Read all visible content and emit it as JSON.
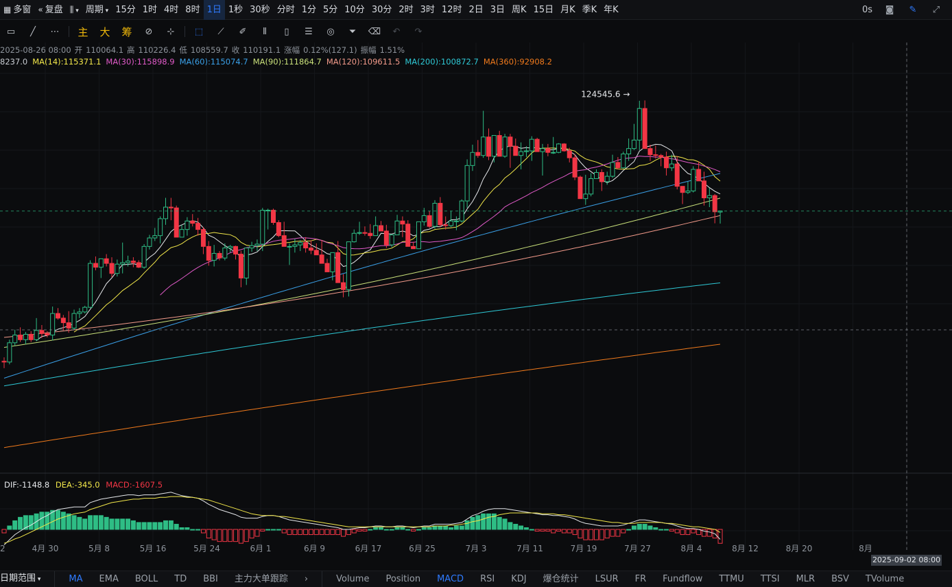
{
  "topbar": {
    "multiwindow": "多窗",
    "replay": "复盘",
    "period": "周期",
    "intervals": [
      "15分",
      "1时",
      "4时",
      "8时",
      "1日",
      "1秒",
      "30秒",
      "分时",
      "1分",
      "5分",
      "10分",
      "30分",
      "2时",
      "3时",
      "12时",
      "2日",
      "3日",
      "周K",
      "15日",
      "月K",
      "季K",
      "年K"
    ],
    "active_interval": "1日",
    "delay": "0s"
  },
  "toolbar": {
    "main": "主",
    "big": "大",
    "chips": "筹"
  },
  "ohlc": {
    "date": "2025-08-26 08:00",
    "open_label": "开",
    "open": "110064.1",
    "high_label": "高",
    "high": "110226.4",
    "low_label": "低",
    "low": "108559.7",
    "close_label": "收",
    "close": "110191.1",
    "change_label": "涨幅",
    "change": "0.12%(127.1)",
    "amp_label": "振幅",
    "amp": "1.51%"
  },
  "ma_legend": [
    {
      "text": "8237.0",
      "color": "#c7cbd1"
    },
    {
      "text": "MA(14):115371.1",
      "color": "#f2e74a"
    },
    {
      "text": "MA(30):115898.9",
      "color": "#e05ac8"
    },
    {
      "text": "MA(60):115074.7",
      "color": "#3aa0e8"
    },
    {
      "text": "MA(90):111864.7",
      "color": "#c9e07a"
    },
    {
      "text": "MA(120):109611.5",
      "color": "#f29a8a"
    },
    {
      "text": "MA(200):100872.7",
      "color": "#2ec9d6"
    },
    {
      "text": "MA(360):92908.2",
      "color": "#f07a1c"
    }
  ],
  "high_marker": "124545.6",
  "macd": {
    "dif": "DIF:-1148.8",
    "dea": "DEA:-345.0",
    "macd": "MACD:-1607.5"
  },
  "x_labels": [
    "2",
    "4月 30",
    "5月 8",
    "5月 16",
    "5月 24",
    "6月 1",
    "6月 9",
    "6月 17",
    "6月 25",
    "7月 3",
    "7月 11",
    "7月 19",
    "7月 27",
    "8月 4",
    "8月 12",
    "8月 20",
    "8月"
  ],
  "crosshair_date": "2025-09-02 08:00",
  "bottombar": {
    "range": "日期范围",
    "main_indicators": [
      "MA",
      "EMA",
      "BOLL",
      "TD",
      "BBI",
      "主力大单跟踪"
    ],
    "sub_indicators": [
      "Volume",
      "Position",
      "MACD",
      "RSI",
      "KDJ",
      "爆仓统计",
      "LSUR",
      "FR",
      "Fundflow",
      "TTMU",
      "TTSI",
      "MLR",
      "BSV",
      "TVolume"
    ],
    "active_main": "MA",
    "active_sub": "MACD"
  },
  "colors": {
    "up": "#2ebd85",
    "down": "#f23645",
    "accent": "#2f7bff"
  },
  "chart_data": {
    "type": "candlestick",
    "ylim": [
      76000,
      128500
    ],
    "candles": [
      [
        90700,
        91200,
        89800,
        90600
      ],
      [
        90600,
        93500,
        90300,
        93100
      ],
      [
        93100,
        94800,
        92700,
        94100
      ],
      [
        94100,
        95100,
        93200,
        93500
      ],
      [
        93500,
        94500,
        92900,
        94200
      ],
      [
        94200,
        94600,
        93200,
        93500
      ],
      [
        93500,
        96300,
        93300,
        94700
      ],
      [
        94700,
        95400,
        93700,
        94300
      ],
      [
        94300,
        94600,
        93800,
        94100
      ],
      [
        94100,
        97800,
        93400,
        96900
      ],
      [
        96900,
        97600,
        96100,
        96300
      ],
      [
        96300,
        96700,
        94700,
        95700
      ],
      [
        95700,
        97200,
        94400,
        95000
      ],
      [
        95000,
        97400,
        94800,
        96900
      ],
      [
        96900,
        97600,
        96300,
        97100
      ],
      [
        97100,
        97900,
        96900,
        97700
      ],
      [
        97700,
        103800,
        97600,
        103400
      ],
      [
        103400,
        104300,
        102500,
        102900
      ],
      [
        102900,
        104000,
        101500,
        104000
      ],
      [
        104000,
        104600,
        103000,
        103400
      ],
      [
        103400,
        104200,
        101600,
        102100
      ],
      [
        102100,
        103900,
        101700,
        103300
      ],
      [
        103300,
        106100,
        102100,
        103500
      ],
      [
        103500,
        104400,
        103000,
        103700
      ],
      [
        103700,
        104200,
        102900,
        103500
      ],
      [
        103500,
        103800,
        102800,
        102900
      ],
      [
        102900,
        105900,
        102700,
        105600
      ],
      [
        105600,
        107100,
        105200,
        106700
      ],
      [
        106700,
        108000,
        106300,
        107000
      ],
      [
        107000,
        109500,
        106000,
        109200
      ],
      [
        109200,
        111900,
        108400,
        110700
      ],
      [
        110700,
        111900,
        109000,
        110600
      ],
      [
        110600,
        110900,
        106800,
        106800
      ],
      [
        106800,
        108400,
        106800,
        107800
      ],
      [
        107800,
        109400,
        107000,
        108900
      ],
      [
        108900,
        109800,
        108200,
        108600
      ],
      [
        108600,
        109300,
        107000,
        107800
      ],
      [
        107800,
        108100,
        104600,
        105600
      ],
      [
        105600,
        106300,
        103100,
        103800
      ],
      [
        103800,
        105800,
        103000,
        104700
      ],
      [
        104700,
        105000,
        103800,
        104100
      ],
      [
        104100,
        106000,
        103800,
        105400
      ],
      [
        105400,
        105800,
        104800,
        105600
      ],
      [
        105600,
        105700,
        103900,
        104600
      ],
      [
        104600,
        105000,
        100300,
        101500
      ],
      [
        101500,
        105400,
        100600,
        105400
      ],
      [
        105400,
        106200,
        104900,
        105700
      ],
      [
        105700,
        106500,
        105000,
        105900
      ],
      [
        105900,
        110600,
        105000,
        110300
      ],
      [
        110300,
        110500,
        107800,
        110300
      ],
      [
        110300,
        110500,
        108400,
        108700
      ],
      [
        108700,
        109000,
        106800,
        107000
      ],
      [
        107000,
        108800,
        105600,
        105600
      ],
      [
        105600,
        106000,
        103200,
        105600
      ],
      [
        105600,
        106600,
        104800,
        105800
      ],
      [
        105800,
        106400,
        105000,
        106100
      ],
      [
        106100,
        106800,
        104800,
        105400
      ],
      [
        105400,
        106400,
        104600,
        105100
      ],
      [
        105100,
        106000,
        104500,
        104500
      ],
      [
        104500,
        106400,
        103400,
        103400
      ],
      [
        103400,
        104000,
        102700,
        102300
      ],
      [
        102300,
        104500,
        101200,
        104800
      ],
      [
        104800,
        106300,
        100900,
        100900
      ],
      [
        100900,
        102000,
        99000,
        100000
      ],
      [
        100000,
        106200,
        99100,
        106200
      ],
      [
        106200,
        107800,
        106100,
        107300
      ],
      [
        107300,
        108800,
        107100,
        107400
      ],
      [
        107400,
        108200,
        107000,
        107300
      ],
      [
        107300,
        108500,
        106600,
        107000
      ],
      [
        107000,
        109500,
        107100,
        108300
      ],
      [
        108300,
        108900,
        107600,
        107600
      ],
      [
        107600,
        108400,
        105400,
        105800
      ],
      [
        105800,
        107200,
        105500,
        107100
      ],
      [
        107100,
        109700,
        107100,
        108900
      ],
      [
        108900,
        109500,
        106800,
        108500
      ],
      [
        108500,
        109000,
        105800,
        105600
      ],
      [
        105600,
        106200,
        105400,
        105300
      ],
      [
        105300,
        108800,
        105300,
        108800
      ],
      [
        108800,
        110600,
        108300,
        109600
      ],
      [
        109600,
        110200,
        108000,
        108200
      ],
      [
        108200,
        111600,
        107900,
        111200
      ],
      [
        111200,
        112000,
        108100,
        108400
      ],
      [
        108400,
        109500,
        107800,
        108300
      ],
      [
        108300,
        110200,
        108100,
        108900
      ],
      [
        108900,
        109500,
        107700,
        108900
      ],
      [
        108900,
        111700,
        108700,
        111500
      ],
      [
        111500,
        116900,
        110600,
        116100
      ],
      [
        116100,
        118800,
        115400,
        117800
      ],
      [
        117800,
        119400,
        117100,
        117400
      ],
      [
        117400,
        123200,
        117100,
        119800
      ],
      [
        119800,
        120900,
        116800,
        117300
      ],
      [
        117300,
        120000,
        116500,
        120000
      ],
      [
        120000,
        120600,
        117400,
        117300
      ],
      [
        117300,
        120200,
        117100,
        119800
      ],
      [
        119800,
        120200,
        115800,
        118600
      ],
      [
        118600,
        119600,
        117800,
        117400
      ],
      [
        117400,
        119100,
        115600,
        117900
      ],
      [
        117900,
        118600,
        117200,
        118000
      ],
      [
        118000,
        119900,
        116700,
        119500
      ],
      [
        119500,
        119700,
        118000,
        117900
      ],
      [
        117900,
        118900,
        114800,
        118300
      ],
      [
        118300,
        118900,
        117300,
        117800
      ],
      [
        117800,
        119800,
        117600,
        117800
      ],
      [
        117800,
        119000,
        117700,
        118900
      ],
      [
        118900,
        119000,
        117900,
        118000
      ],
      [
        118000,
        118400,
        116500,
        117100
      ],
      [
        117100,
        117600,
        114200,
        114600
      ],
      [
        114600,
        114800,
        111800,
        111800
      ],
      [
        111800,
        114900,
        111000,
        112400
      ],
      [
        112400,
        115100,
        112100,
        114400
      ],
      [
        114400,
        115600,
        114400,
        115200
      ],
      [
        115200,
        115600,
        112800,
        114000
      ],
      [
        114000,
        115300,
        113600,
        114700
      ],
      [
        114700,
        117500,
        114500,
        116500
      ],
      [
        116500,
        117200,
        115600,
        115800
      ],
      [
        115800,
        117900,
        115700,
        117600
      ],
      [
        117600,
        119600,
        116700,
        118300
      ],
      [
        118300,
        121500,
        118100,
        119400
      ],
      [
        119400,
        124500,
        118100,
        123500
      ],
      [
        123500,
        124545.6,
        118500,
        118300
      ],
      [
        118300,
        118800,
        116700,
        117500
      ],
      [
        117500,
        118700,
        117000,
        117400
      ],
      [
        117400,
        117600,
        116000,
        117200
      ],
      [
        117200,
        117900,
        114800,
        115800
      ],
      [
        115800,
        117500,
        115400,
        116300
      ],
      [
        116300,
        117300,
        113000,
        113400
      ],
      [
        113400,
        113400,
        111100,
        112600
      ],
      [
        112600,
        114000,
        112400,
        112800
      ],
      [
        112800,
        116000,
        112600,
        115600
      ],
      [
        115600,
        116600,
        114600,
        114100
      ],
      [
        114100,
        115300,
        110900,
        111900
      ],
      [
        111900,
        113200,
        110700,
        112200
      ],
      [
        112200,
        112400,
        108600,
        110100
      ],
      [
        110064.1,
        110226.4,
        108559.7,
        110191.1
      ]
    ],
    "macd_dif": [
      -1800,
      -1200,
      -600,
      -200,
      200,
      500,
      900,
      1300,
      1600,
      2000,
      2300,
      2400,
      2500,
      2600,
      2600,
      2600,
      3100,
      3300,
      3500,
      3600,
      3700,
      3800,
      3900,
      4000,
      4000,
      3900,
      4000,
      4000,
      4000,
      4100,
      4200,
      4300,
      4100,
      3900,
      3800,
      3700,
      3600,
      3300,
      2900,
      2600,
      2300,
      2100,
      1900,
      1700,
      1400,
      1300,
      1300,
      1300,
      1500,
      1600,
      1600,
      1500,
      1300,
      1100,
      1000,
      900,
      800,
      700,
      600,
      500,
      400,
      300,
      200,
      0,
      0,
      100,
      200,
      200,
      300,
      400,
      400,
      300,
      300,
      400,
      400,
      300,
      200,
      300,
      400,
      400,
      600,
      600,
      600,
      600,
      700,
      800,
      1200,
      1600,
      1800,
      2100,
      2300,
      2400,
      2400,
      2400,
      2300,
      2200,
      2100,
      2000,
      1900,
      1800,
      1700,
      1700,
      1600,
      1600,
      1500,
      1400,
      1200,
      900,
      700,
      600,
      500,
      400,
      400,
      400,
      400,
      500,
      700,
      900,
      1100,
      1100,
      1000,
      900,
      800,
      700,
      600,
      400,
      200,
      100,
      100,
      0,
      -200,
      -300,
      -500,
      -1148.8
    ],
    "macd_dea": [
      -1600,
      -1400,
      -1100,
      -900,
      -600,
      -300,
      0,
      300,
      600,
      900,
      1200,
      1400,
      1600,
      1800,
      1900,
      2000,
      2300,
      2500,
      2700,
      2900,
      3100,
      3200,
      3300,
      3400,
      3500,
      3500,
      3600,
      3600,
      3600,
      3700,
      3700,
      3800,
      3800,
      3800,
      3700,
      3700,
      3600,
      3500,
      3400,
      3200,
      3000,
      2800,
      2600,
      2400,
      2200,
      2000,
      1800,
      1700,
      1600,
      1600,
      1600,
      1500,
      1500,
      1400,
      1300,
      1200,
      1100,
      1000,
      900,
      800,
      700,
      600,
      500,
      400,
      300,
      300,
      300,
      300,
      300,
      300,
      300,
      300,
      300,
      300,
      300,
      300,
      300,
      300,
      300,
      300,
      400,
      400,
      400,
      500,
      500,
      600,
      700,
      900,
      1000,
      1200,
      1400,
      1500,
      1700,
      1800,
      1900,
      1900,
      1900,
      1900,
      1900,
      1900,
      1800,
      1800,
      1800,
      1700,
      1700,
      1600,
      1500,
      1400,
      1300,
      1200,
      1100,
      1000,
      900,
      800,
      800,
      700,
      700,
      700,
      800,
      800,
      800,
      800,
      800,
      700,
      700,
      600,
      500,
      400,
      300,
      300,
      200,
      100,
      0,
      -345.0
    ]
  }
}
